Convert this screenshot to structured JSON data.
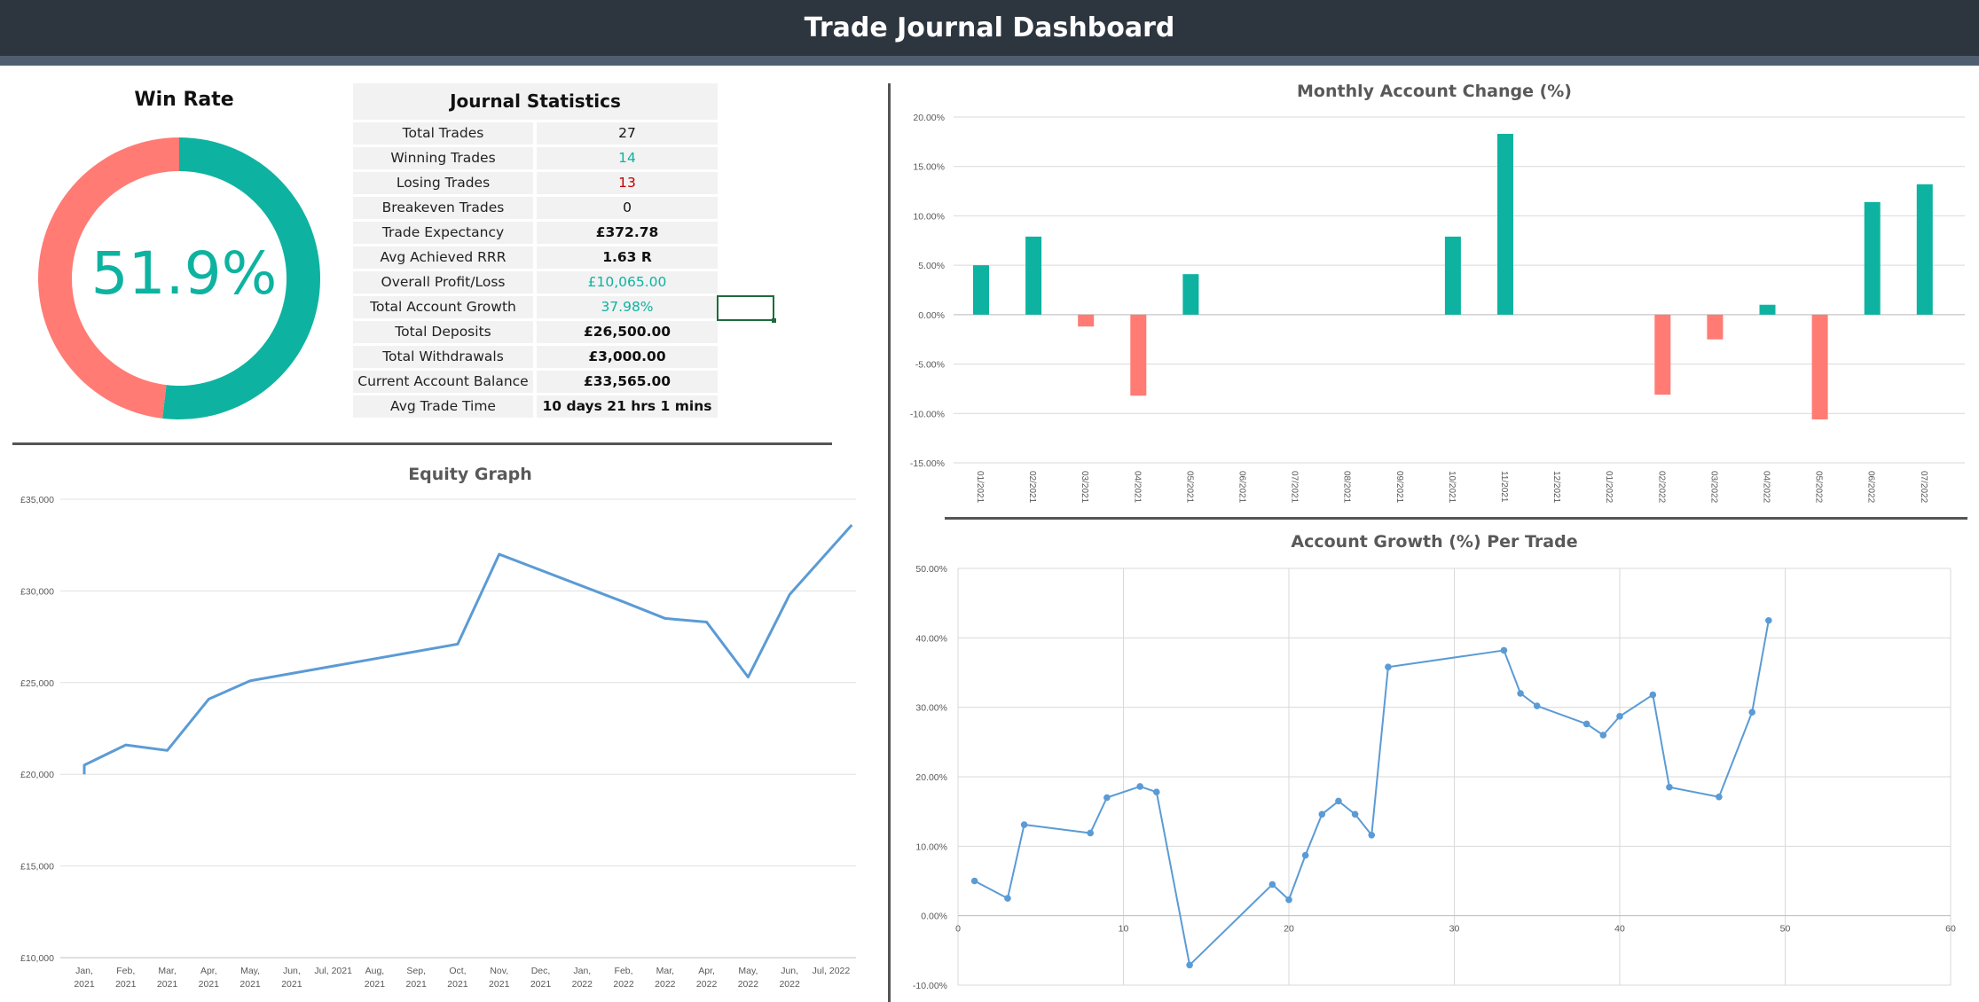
{
  "header": {
    "title": "Trade Journal Dashboard"
  },
  "colors": {
    "teal": "#0db3a0",
    "salmon": "#ff7b74",
    "line": "#5b9bd5",
    "negative_text": "#c00000",
    "header_bg": "#2d353f"
  },
  "win_rate": {
    "title": "Win Rate",
    "percent_label": "51.9%",
    "win_fraction": 0.519
  },
  "journal_statistics": {
    "title": "Journal Statistics",
    "rows": [
      {
        "label": "Total Trades",
        "value": "27",
        "tone": "normal"
      },
      {
        "label": "Winning Trades",
        "value": "14",
        "tone": "positive"
      },
      {
        "label": "Losing Trades",
        "value": "13",
        "tone": "negative"
      },
      {
        "label": "Breakeven Trades",
        "value": "0",
        "tone": "normal"
      },
      {
        "label": "Trade Expectancy",
        "value": "£372.78",
        "tone": "normal"
      },
      {
        "label": "Avg Achieved RRR",
        "value": "1.63 R",
        "tone": "normal"
      },
      {
        "label": "Overall Profit/Loss",
        "value": "£10,065.00",
        "tone": "positive"
      },
      {
        "label": "Total Account Growth",
        "value": "37.98%",
        "tone": "positive"
      },
      {
        "label": "Total Deposits",
        "value": "£26,500.00",
        "tone": "normal"
      },
      {
        "label": "Total Withdrawals",
        "value": "£3,000.00",
        "tone": "normal"
      },
      {
        "label": "Current Account Balance",
        "value": "£33,565.00",
        "tone": "normal"
      },
      {
        "label": "Avg Trade Time",
        "value": "10 days 21 hrs 1 mins",
        "tone": "normal"
      }
    ]
  },
  "chart_data": [
    {
      "type": "line",
      "title": "Equity Graph",
      "ylim": [
        10000,
        35000
      ],
      "y_ticks": [
        "£10,000",
        "£15,000",
        "£20,000",
        "£25,000",
        "£30,000",
        "£35,000"
      ],
      "x_ticks": [
        [
          "Jan,",
          "2021"
        ],
        [
          "Feb,",
          "2021"
        ],
        [
          "Mar,",
          "2021"
        ],
        [
          "Apr,",
          "2021"
        ],
        [
          "May,",
          "2021"
        ],
        [
          "Jun,",
          "2021"
        ],
        [
          "Jul, 2021",
          ""
        ],
        [
          "Aug,",
          "2021"
        ],
        [
          "Sep,",
          "2021"
        ],
        [
          "Oct,",
          "2021"
        ],
        [
          "Nov,",
          "2021"
        ],
        [
          "Dec,",
          "2021"
        ],
        [
          "Jan,",
          "2022"
        ],
        [
          "Feb,",
          "2022"
        ],
        [
          "Mar,",
          "2022"
        ],
        [
          "Apr,",
          "2022"
        ],
        [
          "May,",
          "2022"
        ],
        [
          "Jun,",
          "2022"
        ],
        [
          "Jul, 2022",
          ""
        ]
      ],
      "x_range": [
        0,
        18.6
      ],
      "points": [
        [
          0,
          20000
        ],
        [
          0,
          20500
        ],
        [
          1,
          21600
        ],
        [
          2,
          21300
        ],
        [
          3,
          24100
        ],
        [
          4,
          25100
        ],
        [
          9,
          27100
        ],
        [
          10,
          32000
        ],
        [
          13,
          29400
        ],
        [
          14,
          28500
        ],
        [
          15,
          28300
        ],
        [
          16,
          25300
        ],
        [
          17,
          29800
        ],
        [
          18.5,
          33600
        ]
      ],
      "grid": true
    },
    {
      "type": "bar",
      "title": "Monthly Account Change (%)",
      "ylim": [
        -15,
        20
      ],
      "y_ticks": [
        "-15.00%",
        "-10.00%",
        "-5.00%",
        "0.00%",
        "5.00%",
        "10.00%",
        "15.00%",
        "20.00%"
      ],
      "categories": [
        "01/2021",
        "02/2021",
        "03/2021",
        "04/2021",
        "05/2021",
        "06/2021",
        "07/2021",
        "08/2021",
        "09/2021",
        "10/2021",
        "11/2021",
        "12/2021",
        "01/2022",
        "02/2022",
        "03/2022",
        "04/2022",
        "05/2022",
        "06/2022",
        "07/2022"
      ],
      "values": [
        5.0,
        7.9,
        -1.2,
        -8.2,
        4.1,
        0,
        0,
        0,
        0,
        7.9,
        18.3,
        0,
        0,
        -8.1,
        -2.5,
        1.0,
        -10.6,
        11.4,
        13.2
      ],
      "grid": true
    },
    {
      "type": "scatter",
      "title": "Account Growth (%) Per Trade",
      "xlim": [
        0,
        60
      ],
      "ylim": [
        -10,
        50
      ],
      "x_ticks": [
        "0",
        "10",
        "20",
        "30",
        "40",
        "50",
        "60"
      ],
      "y_ticks": [
        "-10.00%",
        "0.00%",
        "10.00%",
        "20.00%",
        "30.00%",
        "40.00%",
        "50.00%"
      ],
      "points": [
        [
          1,
          5.0
        ],
        [
          3,
          2.5
        ],
        [
          4,
          13.1
        ],
        [
          8,
          11.9
        ],
        [
          9,
          17.0
        ],
        [
          11,
          18.6
        ],
        [
          12,
          17.8
        ],
        [
          14,
          -7.1
        ],
        [
          19,
          4.5
        ],
        [
          20,
          2.3
        ],
        [
          21,
          8.7
        ],
        [
          22,
          14.6
        ],
        [
          23,
          16.5
        ],
        [
          24,
          14.6
        ],
        [
          25,
          11.6
        ],
        [
          26,
          35.8
        ],
        [
          33,
          38.2
        ],
        [
          34,
          32.0
        ],
        [
          35,
          30.2
        ],
        [
          38,
          27.6
        ],
        [
          39,
          26.0
        ],
        [
          40,
          28.7
        ],
        [
          42,
          31.8
        ],
        [
          43,
          18.5
        ],
        [
          46,
          17.1
        ],
        [
          48,
          29.3
        ],
        [
          49,
          42.5
        ]
      ],
      "grid": true
    }
  ]
}
